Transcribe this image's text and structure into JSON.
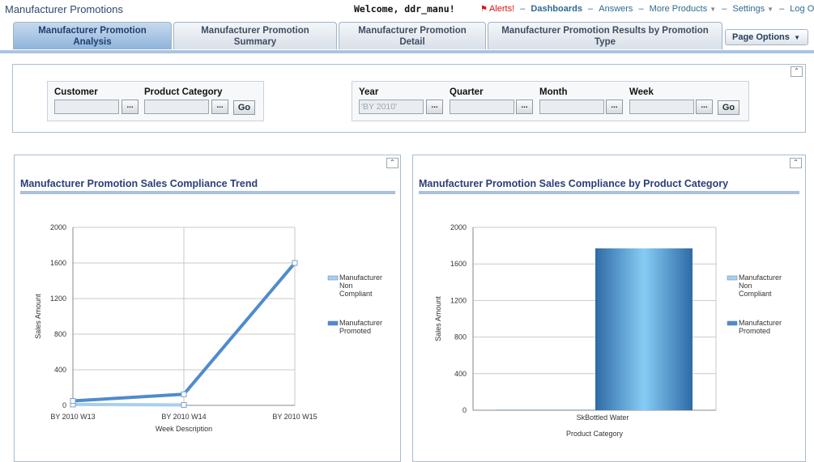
{
  "app": {
    "title": "Manufacturer Promotions",
    "welcome": "Welcome, ddr_manu!"
  },
  "nav": {
    "alerts": "Alerts!",
    "dashboards": "Dashboards",
    "answers": "Answers",
    "more_products": "More Products",
    "settings": "Settings",
    "logout": "Log Out",
    "separator": "–"
  },
  "tabs": [
    {
      "label": "Manufacturer Promotion Analysis",
      "active": true
    },
    {
      "label": "Manufacturer Promotion Summary",
      "active": false
    },
    {
      "label": "Manufacturer Promotion Detail",
      "active": false
    },
    {
      "label": "Manufacturer Promotion Results by Promotion Type",
      "active": false
    }
  ],
  "page_options": "Page Options",
  "prompts": {
    "customer_label": "Customer",
    "product_category_label": "Product Category",
    "year_label": "Year",
    "year_value": "'BY 2010'",
    "quarter_label": "Quarter",
    "month_label": "Month",
    "week_label": "Week",
    "browse_label": "...",
    "go_label": "Go"
  },
  "colors": {
    "non_compliant": "#a9cfee",
    "promoted": "#4f8bcf",
    "title": "#2a3f7a"
  },
  "chart_data": [
    {
      "type": "line",
      "title": "Manufacturer Promotion Sales Compliance Trend",
      "xlabel": "Week Description",
      "ylabel": "Sales Amount",
      "categories": [
        "BY 2010 W13",
        "BY 2010 W14",
        "BY 2010 W15"
      ],
      "ylim": [
        0,
        2000
      ],
      "yticks": [
        0,
        400,
        800,
        1200,
        1600,
        2000
      ],
      "grid": true,
      "legend": "right",
      "series": [
        {
          "name": "Manufacturer Non Compliant",
          "values": [
            10,
            5,
            null
          ]
        },
        {
          "name": "Manufacturer Promoted",
          "values": [
            50,
            125,
            1600
          ]
        }
      ]
    },
    {
      "type": "bar",
      "title": "Manufacturer Promotion Sales Compliance by Product Category",
      "xlabel": "Product Category",
      "ylabel": "Sales Amount",
      "categories": [
        "SkBottled Water"
      ],
      "ylim": [
        0,
        2000
      ],
      "yticks": [
        0,
        400,
        800,
        1200,
        1600,
        2000
      ],
      "grid": true,
      "legend": "right",
      "series": [
        {
          "name": "Manufacturer Non Compliant",
          "values": [
            8
          ]
        },
        {
          "name": "Manufacturer Promoted",
          "values": [
            1770
          ]
        }
      ]
    }
  ]
}
